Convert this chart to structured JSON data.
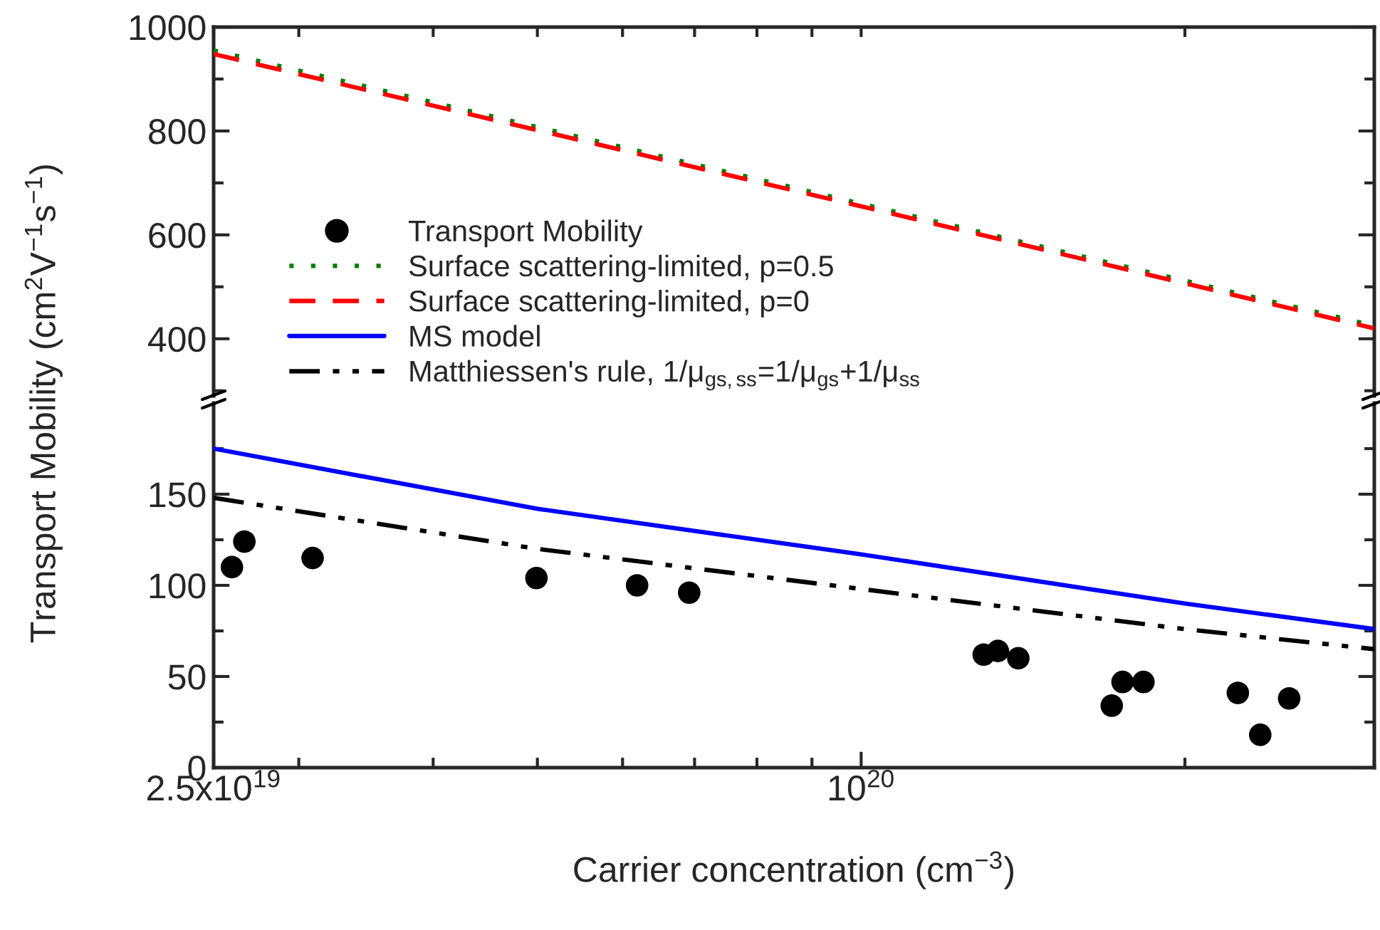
{
  "chart_data": [
    {
      "type": "line",
      "xlim": [
        2.5e+19,
        3e+20
      ],
      "ylim": [
        290,
        1000
      ],
      "log": "x",
      "grid": false,
      "legend": "left",
      "tick_labels": "y",
      "xticks": [
        {
          "value": 2.5e+19,
          "label": null
        },
        {
          "value": 3e+19,
          "label": null
        },
        {
          "value": 4e+19,
          "label": null
        },
        {
          "value": 5e+19,
          "label": null
        },
        {
          "value": 6e+19,
          "label": null
        },
        {
          "value": 7e+19,
          "label": null
        },
        {
          "value": 8e+19,
          "label": null
        },
        {
          "value": 9e+19,
          "label": null
        },
        {
          "value": 1e+20,
          "label": null
        },
        {
          "value": 2e+20,
          "label": null
        },
        {
          "value": 3e+20,
          "label": null
        }
      ],
      "yticks": [
        {
          "value": 300,
          "label": null
        },
        400,
        {
          "value": 500,
          "label": null
        },
        600,
        {
          "value": 700,
          "label": null
        },
        800,
        {
          "value": 900,
          "label": null
        },
        1000
      ],
      "series": [
        {
          "name": "Surface scattering-limited, p=0.5",
          "color": "#008000",
          "line_style": "dotted",
          "x": [
            2.5e+19,
            1e+20,
            3e+20
          ],
          "values": [
            955,
            660,
            425
          ]
        },
        {
          "name": "Surface scattering-limited, p=0",
          "color": "#ff0000",
          "line_style": "dashed",
          "x": [
            2.5e+19,
            1e+20,
            3e+20
          ],
          "values": [
            948,
            655,
            420
          ]
        }
      ]
    },
    {
      "type": "scatter",
      "xlim": [
        2.5e+19,
        3e+20
      ],
      "ylim": [
        0,
        200
      ],
      "log": "x",
      "grid": false,
      "legend": "left",
      "xlabel": "Carrier concentration (cm$^{−3}$)",
      "ylabel": "Transport Mobility (cm$^{2}$V$^{−1}$s$^{−1}$)",
      "xticks": [
        {
          "value": 2.5e+19,
          "label": "2.5x10$^{19}$"
        },
        {
          "value": 3e+19,
          "label": null
        },
        {
          "value": 4e+19,
          "label": null
        },
        {
          "value": 5e+19,
          "label": null
        },
        {
          "value": 6e+19,
          "label": null
        },
        {
          "value": 7e+19,
          "label": null
        },
        {
          "value": 8e+19,
          "label": null
        },
        {
          "value": 9e+19,
          "label": null
        },
        {
          "value": 1e+20,
          "label": "10$^{20}$"
        },
        {
          "value": 2e+20,
          "label": null
        },
        {
          "value": 3e+20,
          "label": null
        }
      ],
      "yticks": [
        0,
        {
          "value": 25,
          "label": null
        },
        50,
        {
          "value": 75,
          "label": null
        },
        100,
        {
          "value": 125,
          "label": null
        },
        150,
        {
          "value": 175,
          "label": null
        }
      ],
      "series": [
        {
          "name": "Transport Mobility",
          "color": "#000000",
          "marker": "circle",
          "x": [
            2.6e+19,
            2.67e+19,
            3.09e+19,
            4.99e+19,
            6.19e+19,
            6.92e+19,
            1.3e+20,
            1.34e+20,
            1.4e+20,
            1.71e+20,
            1.75e+20,
            1.83e+20,
            2.24e+20,
            2.35e+20,
            2.5e+20
          ],
          "values": [
            110,
            124,
            115,
            104,
            100,
            96,
            62,
            64,
            60,
            34,
            47,
            47,
            41,
            18,
            38
          ]
        },
        {
          "name": "MS model",
          "type": "line",
          "color": "#0000ff",
          "line_style": "solid",
          "x": [
            2.5e+19,
            5e+19,
            1e+20,
            2e+20,
            3e+20
          ],
          "values": [
            175,
            142,
            117,
            90,
            76
          ]
        },
        {
          "name": "Matthiessen's rule, 1/μ$_{gs,ss}$=1/μ$_{gs}$+1/μ$_{ss}$",
          "type": "line",
          "color": "#000000",
          "line_style": "dashdotdot",
          "x": [
            2.5e+19,
            5e+19,
            1e+20,
            2e+20,
            3e+20
          ],
          "values": [
            148,
            120,
            98,
            76,
            65
          ]
        }
      ]
    }
  ]
}
